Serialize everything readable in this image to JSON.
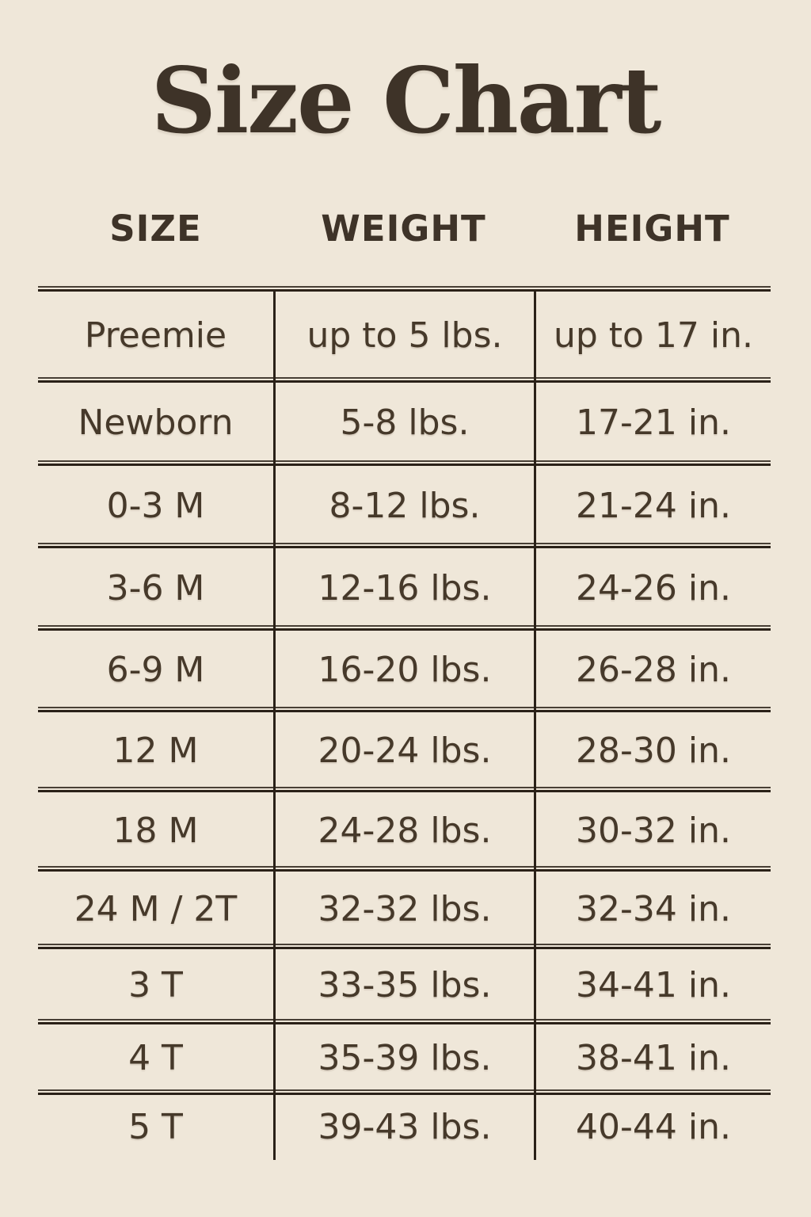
{
  "page": {
    "title": "Size Chart"
  },
  "colors": {
    "background": "#efe7d9",
    "text": "#46392a",
    "title": "#3e3328",
    "rule": "#2a2118"
  },
  "table": {
    "headers": [
      "SIZE",
      "WEIGHT",
      "HEIGHT"
    ],
    "rows": [
      {
        "size": "Preemie",
        "weight": "up to 5 lbs.",
        "height": "up to 17 in."
      },
      {
        "size": "Newborn",
        "weight": "5-8 lbs.",
        "height": "17-21 in."
      },
      {
        "size": "0-3 M",
        "weight": "8-12 lbs.",
        "height": "21-24 in."
      },
      {
        "size": "3-6 M",
        "weight": "12-16 lbs.",
        "height": "24-26 in."
      },
      {
        "size": "6-9 M",
        "weight": "16-20 lbs.",
        "height": "26-28 in."
      },
      {
        "size": "12 M",
        "weight": "20-24 lbs.",
        "height": "28-30 in."
      },
      {
        "size": "18 M",
        "weight": "24-28 lbs.",
        "height": "30-32 in."
      },
      {
        "size": "24 M / 2T",
        "weight": "32-32 lbs.",
        "height": "32-34 in."
      },
      {
        "size": "3 T",
        "weight": "33-35 lbs.",
        "height": "34-41 in."
      },
      {
        "size": "4 T",
        "weight": "35-39 lbs.",
        "height": "38-41 in."
      },
      {
        "size": "5 T",
        "weight": "39-43 lbs.",
        "height": "40-44 in."
      }
    ]
  }
}
